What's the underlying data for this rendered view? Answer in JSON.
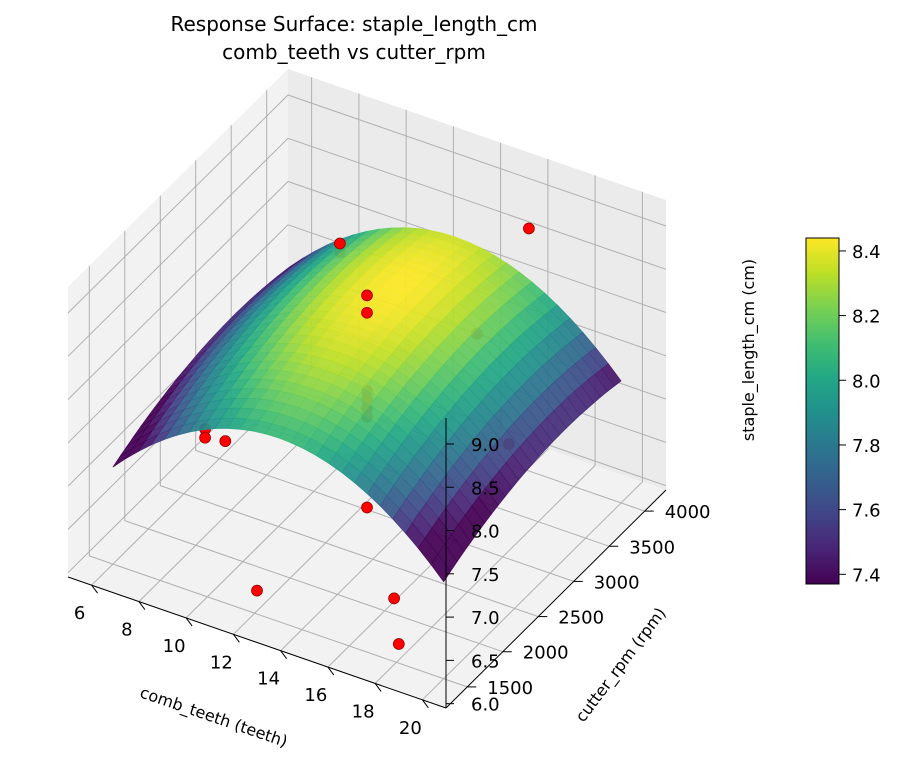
{
  "chart_data": {
    "type": "surface3d",
    "title": "Response Surface: staple_length_cm",
    "subtitle": "comb_teeth vs cutter_rpm",
    "xlabel": "comb_teeth (teeth)",
    "ylabel": "cutter_rpm (rpm)",
    "zlabel": "staple_length_cm (cm)",
    "x_ticks": [
      "6",
      "8",
      "10",
      "12",
      "14",
      "16",
      "18",
      "20"
    ],
    "y_ticks": [
      "1500",
      "2000",
      "2500",
      "3000",
      "3500",
      "4000"
    ],
    "z_ticks": [
      "6.0",
      "6.5",
      "7.0",
      "7.5",
      "8.0",
      "8.5",
      "9.0"
    ],
    "xlim": [
      5,
      21
    ],
    "ylim": [
      1200,
      4300
    ],
    "zlim": [
      5.95,
      9.3
    ],
    "colorbar": {
      "colormap": "viridis",
      "min": 7.37,
      "max": 8.44,
      "ticks": [
        "7.4",
        "7.6",
        "7.8",
        "8.0",
        "8.2",
        "8.4"
      ]
    },
    "surface": {
      "x_range": [
        6,
        20
      ],
      "y_range": [
        1500,
        4000
      ],
      "center_value": 8.44,
      "x_center": 13,
      "y_center": 3200,
      "x_curvature": 1.0,
      "y_curvature": 0.2,
      "interaction": 0
    },
    "points": [
      {
        "x": 13,
        "y": 2750,
        "z": 8.7
      },
      {
        "x": 13,
        "y": 2750,
        "z": 8.5
      },
      {
        "x": 13,
        "y": 2750,
        "z": 7.6
      },
      {
        "x": 13,
        "y": 2750,
        "z": 7.5
      },
      {
        "x": 13,
        "y": 2750,
        "z": 7.4
      },
      {
        "x": 13,
        "y": 2750,
        "z": 7.3
      },
      {
        "x": 13,
        "y": 2750,
        "z": 6.25
      },
      {
        "x": 9,
        "y": 3700,
        "z": 8.15
      },
      {
        "x": 9,
        "y": 3700,
        "z": 8.05
      },
      {
        "x": 9,
        "y": 1800,
        "z": 7.55
      },
      {
        "x": 9,
        "y": 1800,
        "z": 7.45
      },
      {
        "x": 17,
        "y": 3700,
        "z": 9.08
      },
      {
        "x": 17,
        "y": 1800,
        "z": 6.35
      },
      {
        "x": 13,
        "y": 1200,
        "z": 6.55
      },
      {
        "x": 19,
        "y": 2750,
        "z": 7.55
      },
      {
        "x": 7,
        "y": 2750,
        "z": 6.45
      },
      {
        "x": 13,
        "y": 4300,
        "z": 7.0
      },
      {
        "x": 19,
        "y": 1200,
        "z": 6.5
      }
    ],
    "point_color": "#ff0000"
  }
}
